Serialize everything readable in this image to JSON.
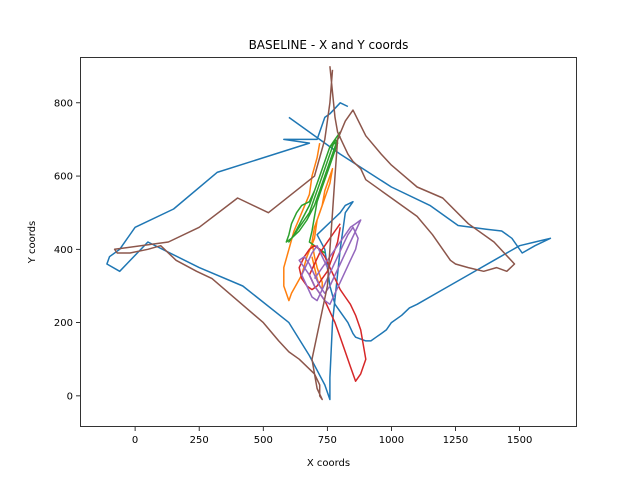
{
  "chart_data": {
    "type": "line",
    "title": "BASELINE - X and Y coords",
    "xlabel": "X coords",
    "ylabel": "Y coords",
    "xlim": [
      -215,
      1720
    ],
    "ylim": [
      -85,
      925
    ],
    "xticks": [
      0,
      250,
      500,
      750,
      1000,
      1250,
      1500
    ],
    "yticks": [
      0,
      200,
      400,
      600,
      800
    ],
    "xtick_labels": [
      "0",
      "250",
      "500",
      "750",
      "1000",
      "1250",
      "1500"
    ],
    "ytick_labels": [
      "0",
      "200",
      "400",
      "600",
      "800"
    ],
    "grid": false,
    "series": [
      {
        "color": "#1f77b4",
        "x": [
          830,
          800,
          760,
          740,
          710,
          580,
          680,
          320,
          150,
          0,
          -60,
          -100,
          -110,
          -60,
          50,
          250,
          420,
          600,
          680,
          740,
          760,
          760,
          760,
          770,
          800,
          820,
          850,
          820,
          800,
          770,
          740,
          710,
          740,
          750,
          760,
          780,
          830,
          850,
          860,
          880,
          900,
          920,
          940,
          960,
          980,
          1000,
          1040,
          1070,
          1100,
          1200,
          1300,
          1400,
          1500,
          1560,
          1620,
          1560,
          1510,
          1470,
          1430,
          1370,
          1260,
          1150,
          1000,
          800,
          600
        ],
        "y": [
          790,
          800,
          770,
          760,
          700,
          700,
          690,
          610,
          510,
          460,
          400,
          380,
          360,
          340,
          420,
          350,
          300,
          200,
          110,
          30,
          -10,
          0,
          50,
          200,
          400,
          500,
          530,
          520,
          500,
          480,
          460,
          440,
          400,
          350,
          300,
          250,
          200,
          170,
          160,
          155,
          150,
          150,
          160,
          170,
          180,
          200,
          220,
          240,
          250,
          290,
          330,
          370,
          410,
          420,
          430,
          410,
          390,
          430,
          450,
          455,
          465,
          520,
          570,
          660,
          760
        ]
      },
      {
        "color": "#ff7f0e",
        "x": [
          720,
          710,
          690,
          680,
          650,
          620,
          600,
          580,
          580,
          600,
          610,
          650,
          670,
          700,
          710,
          730,
          740,
          760,
          770,
          760,
          740,
          720,
          700,
          690,
          700,
          710,
          720,
          730,
          730,
          720,
          710,
          700,
          690
        ],
        "y": [
          690,
          650,
          600,
          550,
          500,
          450,
          400,
          350,
          300,
          260,
          280,
          330,
          380,
          430,
          480,
          520,
          560,
          600,
          620,
          580,
          540,
          500,
          460,
          420,
          380,
          350,
          330,
          310,
          290,
          300,
          320,
          350,
          380
        ]
      },
      {
        "color": "#2ca02c",
        "x": [
          800,
          780,
          760,
          740,
          720,
          700,
          680,
          650,
          630,
          610,
          600,
          590,
          610,
          640,
          670,
          700,
          720,
          740,
          760,
          780,
          800,
          780,
          760,
          740,
          720,
          700,
          680,
          660,
          640,
          620,
          600,
          620,
          650,
          680,
          700,
          720,
          740,
          760,
          780,
          790,
          770,
          750,
          730,
          710,
          700,
          690,
          680,
          700,
          720,
          740
        ],
        "y": [
          710,
          690,
          680,
          640,
          600,
          560,
          530,
          520,
          500,
          470,
          440,
          420,
          430,
          450,
          480,
          520,
          560,
          600,
          640,
          680,
          720,
          700,
          660,
          620,
          580,
          540,
          500,
          480,
          460,
          440,
          420,
          440,
          480,
          520,
          560,
          600,
          640,
          680,
          700,
          690,
          650,
          610,
          570,
          530,
          490,
          450,
          420,
          410,
          400,
          390
        ]
      },
      {
        "color": "#d62728",
        "x": [
          800,
          790,
          770,
          750,
          730,
          710,
          690,
          670,
          650,
          640,
          660,
          680,
          700,
          720,
          740,
          760,
          780,
          800,
          820,
          840,
          860,
          880,
          900,
          880,
          860,
          840,
          820,
          800,
          780,
          760,
          740,
          720,
          700,
          680,
          700,
          720,
          740,
          760,
          780,
          800
        ],
        "y": [
          460,
          420,
          380,
          340,
          320,
          300,
          290,
          300,
          320,
          350,
          380,
          400,
          410,
          400,
          380,
          350,
          320,
          290,
          270,
          250,
          220,
          180,
          100,
          60,
          40,
          80,
          120,
          160,
          200,
          230,
          260,
          280,
          300,
          330,
          360,
          390,
          410,
          430,
          450,
          470
        ]
      },
      {
        "color": "#9467bd",
        "x": [
          700,
          720,
          740,
          760,
          780,
          800,
          820,
          840,
          860,
          880,
          860,
          840,
          820,
          800,
          780,
          760,
          740,
          720,
          700,
          680,
          660,
          640,
          660,
          680,
          700,
          720,
          740,
          760,
          780,
          800,
          820,
          840,
          860,
          870,
          850,
          830,
          810,
          790,
          770,
          750,
          730,
          710,
          690,
          670,
          650,
          670,
          690,
          710,
          730,
          750
        ],
        "y": [
          320,
          340,
          360,
          380,
          400,
          420,
          440,
          460,
          470,
          480,
          450,
          420,
          390,
          360,
          330,
          300,
          280,
          300,
          330,
          360,
          380,
          370,
          350,
          330,
          300,
          280,
          260,
          250,
          280,
          310,
          340,
          370,
          400,
          430,
          460,
          440,
          410,
          380,
          350,
          320,
          290,
          260,
          270,
          300,
          330,
          360,
          390,
          410,
          380,
          350
        ]
      },
      {
        "color": "#8c564b",
        "x": [
          770,
          760,
          740,
          700,
          520,
          400,
          250,
          130,
          -80,
          -70,
          -20,
          50,
          100,
          160,
          240,
          300,
          400,
          500,
          560,
          600,
          640,
          700,
          720,
          720,
          730,
          710,
          700,
          690,
          720,
          750,
          760,
          770,
          780,
          790,
          820,
          850,
          900,
          960,
          1000,
          1050,
          1100,
          1200,
          1300,
          1400,
          1480,
          1450,
          1410,
          1360,
          1300,
          1250,
          1230,
          1160,
          1100,
          1040,
          1000,
          960,
          900,
          880,
          850,
          830,
          810,
          790,
          780,
          760
        ],
        "y": [
          890,
          800,
          700,
          600,
          500,
          540,
          460,
          420,
          400,
          390,
          390,
          400,
          410,
          370,
          340,
          320,
          260,
          200,
          150,
          120,
          100,
          60,
          30,
          0,
          -10,
          20,
          60,
          100,
          200,
          300,
          400,
          500,
          600,
          700,
          750,
          780,
          710,
          660,
          630,
          600,
          570,
          540,
          470,
          420,
          360,
          340,
          350,
          340,
          350,
          360,
          370,
          440,
          490,
          520,
          540,
          560,
          590,
          620,
          640,
          660,
          690,
          720,
          760,
          900
        ]
      }
    ]
  }
}
